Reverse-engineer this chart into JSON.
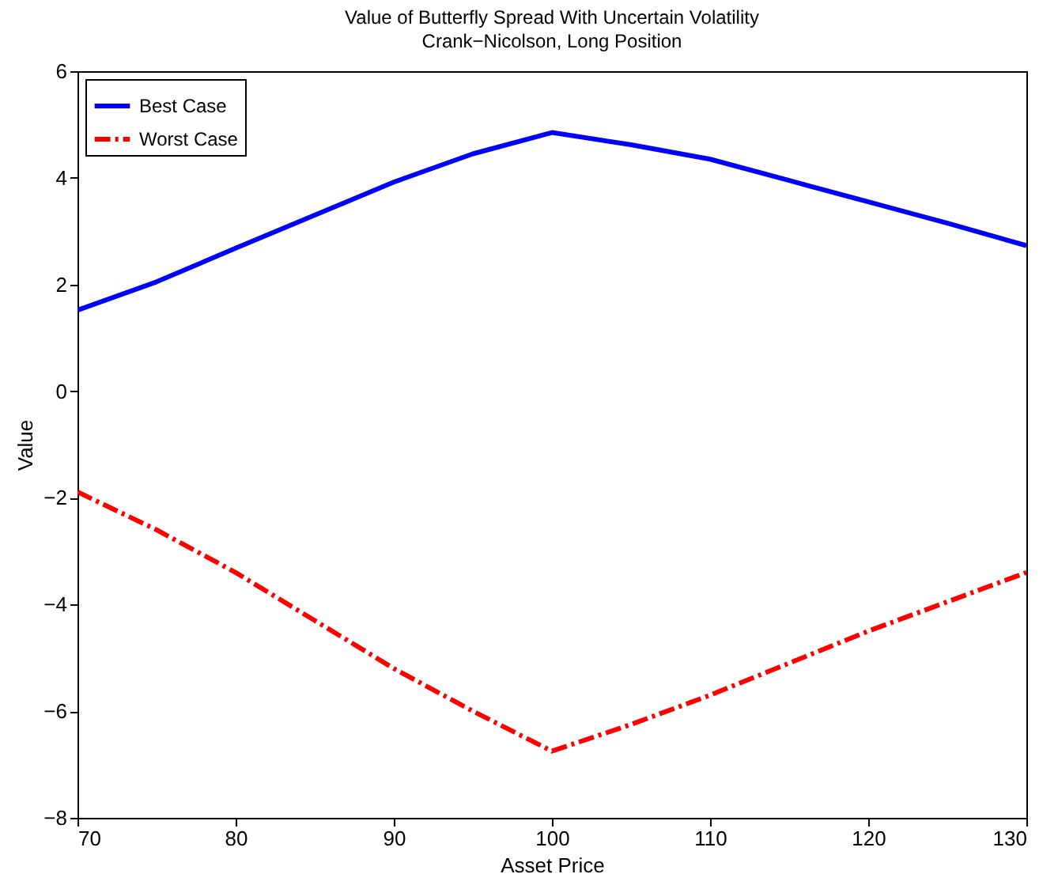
{
  "chart_data": {
    "type": "line",
    "title": "Value of Butterfly Spread With Uncertain Volatility",
    "subtitle": "Crank−Nicolson, Long Position",
    "xlabel": "Asset Price",
    "ylabel": "Value",
    "x": [
      70,
      75,
      80,
      85,
      90,
      95,
      100,
      105,
      110,
      115,
      120,
      125,
      130
    ],
    "series": [
      {
        "name": "Best Case",
        "color": "#0000ff",
        "line_style": "solid",
        "values": [
          1.52,
          2.05,
          2.68,
          3.3,
          3.92,
          4.45,
          4.85,
          4.62,
          4.35,
          3.95,
          3.55,
          3.15,
          2.73
        ]
      },
      {
        "name": "Worst Case",
        "color": "#ff0000",
        "line_style": "dashed",
        "values": [
          -1.89,
          -2.6,
          -3.4,
          -4.3,
          -5.2,
          -6.0,
          -6.75,
          -6.25,
          -5.7,
          -5.1,
          -4.5,
          -3.95,
          -3.4
        ]
      }
    ],
    "xlim": [
      70,
      130
    ],
    "xticks": [
      70,
      80,
      90,
      100,
      110,
      120,
      130
    ],
    "ylim": [
      -8,
      6
    ],
    "yticks": [
      -8,
      -6,
      -4,
      -2,
      0,
      2,
      4,
      6
    ],
    "legend": "top left"
  }
}
